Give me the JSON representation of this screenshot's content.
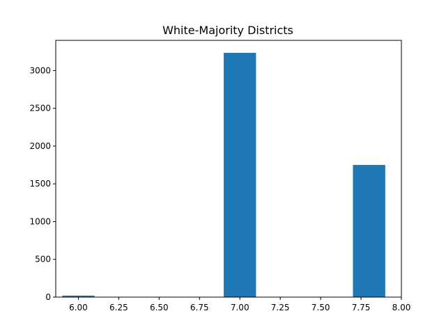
{
  "chart_data": {
    "type": "bar",
    "title": "White-Majority Districts",
    "xlabel": "",
    "ylabel": "",
    "xlim": [
      5.86,
      8.0
    ],
    "ylim": [
      0,
      3400
    ],
    "grid": false,
    "bar_color": "#1f77b4",
    "bars": [
      {
        "x_start": 5.9,
        "x_end": 6.1,
        "value": 20
      },
      {
        "x_start": 6.9,
        "x_end": 7.1,
        "value": 3235
      },
      {
        "x_start": 7.7,
        "x_end": 7.9,
        "value": 1750
      }
    ],
    "x_ticks": [
      {
        "value": 6.0,
        "label": "6.00"
      },
      {
        "value": 6.25,
        "label": "6.25"
      },
      {
        "value": 6.5,
        "label": "6.50"
      },
      {
        "value": 6.75,
        "label": "6.75"
      },
      {
        "value": 7.0,
        "label": "7.00"
      },
      {
        "value": 7.25,
        "label": "7.25"
      },
      {
        "value": 7.5,
        "label": "7.50"
      },
      {
        "value": 7.75,
        "label": "7.75"
      },
      {
        "value": 8.0,
        "label": "8.00"
      }
    ],
    "y_ticks": [
      {
        "value": 0,
        "label": "0"
      },
      {
        "value": 500,
        "label": "500"
      },
      {
        "value": 1000,
        "label": "1000"
      },
      {
        "value": 1500,
        "label": "1500"
      },
      {
        "value": 2000,
        "label": "2000"
      },
      {
        "value": 2500,
        "label": "2500"
      },
      {
        "value": 3000,
        "label": "3000"
      }
    ]
  }
}
